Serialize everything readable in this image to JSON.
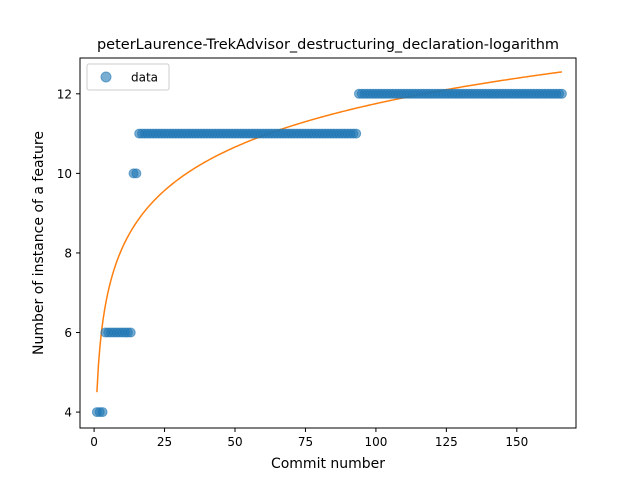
{
  "chart_data": {
    "type": "scatter",
    "title": "peterLaurence-TrekAdvisor_destructuring_declaration-logarithm",
    "xlabel": "Commit number",
    "ylabel": "Number of instance of a feature",
    "xlim": [
      -5,
      171
    ],
    "ylim": [
      3.6,
      12.9
    ],
    "xticks": [
      0,
      25,
      50,
      75,
      100,
      125,
      150
    ],
    "yticks": [
      4,
      6,
      8,
      10,
      12
    ],
    "grid": false,
    "legend": {
      "placement": "top-left",
      "entries": [
        "data"
      ]
    },
    "colors": {
      "data": "#1f77b4",
      "fit": "#ff7f0e"
    },
    "series": [
      {
        "name": "data",
        "kind": "scatter",
        "segments": [
          {
            "x_start": 1,
            "x_end": 3,
            "y": 4
          },
          {
            "x_start": 4,
            "x_end": 13,
            "y": 6
          },
          {
            "x_start": 14,
            "x_end": 15,
            "y": 10
          },
          {
            "x_start": 16,
            "x_end": 93,
            "y": 11
          },
          {
            "x_start": 94,
            "x_end": 166,
            "y": 12
          }
        ]
      },
      {
        "kind": "line",
        "fit": {
          "model": "logarithm",
          "a": 4.5,
          "b": 1.575
        },
        "x_range": [
          1,
          166
        ]
      }
    ]
  }
}
